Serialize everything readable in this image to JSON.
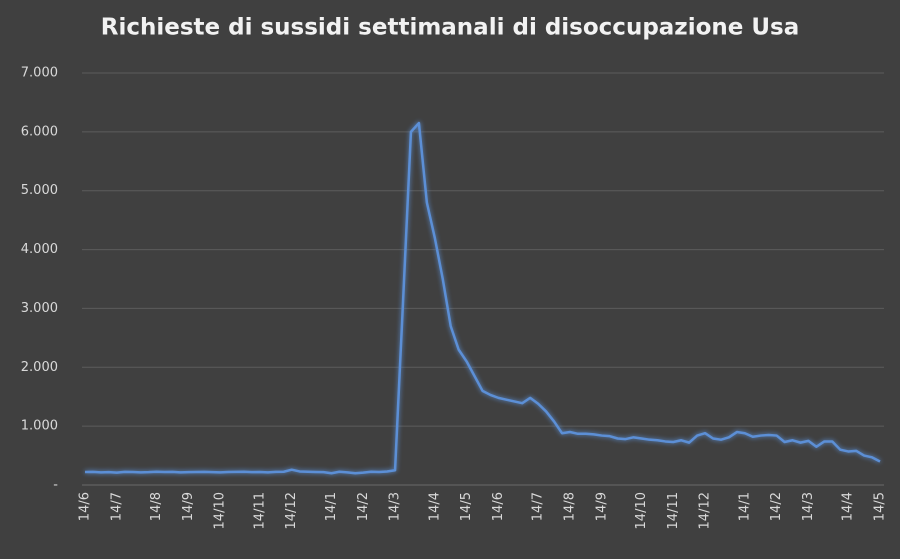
{
  "chart_data": {
    "type": "line",
    "title": "Richieste di sussidi settimanali di disoccupazione Usa",
    "categories": [
      "14/6",
      null,
      null,
      null,
      "14/7",
      null,
      null,
      null,
      null,
      "14/8",
      null,
      null,
      null,
      "14/9",
      null,
      null,
      null,
      "14/10",
      null,
      null,
      null,
      null,
      "14/11",
      null,
      null,
      null,
      "14/12",
      null,
      null,
      null,
      null,
      "14/1",
      null,
      null,
      null,
      "14/2",
      null,
      null,
      null,
      "14/3",
      null,
      null,
      null,
      null,
      "14/4",
      null,
      null,
      null,
      "14/5",
      null,
      null,
      null,
      "14/6",
      null,
      null,
      null,
      null,
      "14/7",
      null,
      null,
      null,
      "14/8",
      null,
      null,
      null,
      "14/9",
      null,
      null,
      null,
      null,
      "14/10",
      null,
      null,
      null,
      "14/11",
      null,
      null,
      null,
      "14/12",
      null,
      null,
      null,
      null,
      "14/1",
      null,
      null,
      null,
      "14/2",
      null,
      null,
      null,
      "14/3",
      null,
      null,
      null,
      null,
      "14/4",
      null,
      null,
      null,
      "14/5"
    ],
    "series": [
      {
        "color": "#5b8fd6",
        "values": [
          220,
          222,
          215,
          218,
          210,
          222,
          220,
          215,
          218,
          225,
          220,
          222,
          215,
          218,
          220,
          222,
          218,
          215,
          220,
          222,
          225,
          218,
          220,
          215,
          222,
          225,
          260,
          230,
          225,
          220,
          218,
          200,
          225,
          215,
          200,
          210,
          225,
          220,
          230,
          250,
          3100,
          6000,
          6150,
          4800,
          4200,
          3500,
          2700,
          2300,
          2100,
          1850,
          1600,
          1530,
          1480,
          1450,
          1420,
          1390,
          1480,
          1380,
          1250,
          1080,
          880,
          900,
          870,
          870,
          860,
          840,
          830,
          790,
          780,
          810,
          790,
          770,
          760,
          740,
          730,
          760,
          720,
          840,
          880,
          790,
          770,
          810,
          900,
          880,
          820,
          840,
          850,
          840,
          730,
          760,
          720,
          750,
          650,
          740,
          740,
          600,
          570,
          580,
          500,
          470,
          400
        ]
      }
    ],
    "ylim": [
      0,
      7000
    ],
    "yticks": [
      {
        "value": 0,
        "label": "-"
      },
      {
        "value": 1000,
        "label": "1.000"
      },
      {
        "value": 2000,
        "label": "2.000"
      },
      {
        "value": 3000,
        "label": "3.000"
      },
      {
        "value": 4000,
        "label": "4.000"
      },
      {
        "value": 5000,
        "label": "5.000"
      },
      {
        "value": 6000,
        "label": "6.000"
      },
      {
        "value": 7000,
        "label": "7.000"
      }
    ],
    "grid": true
  }
}
